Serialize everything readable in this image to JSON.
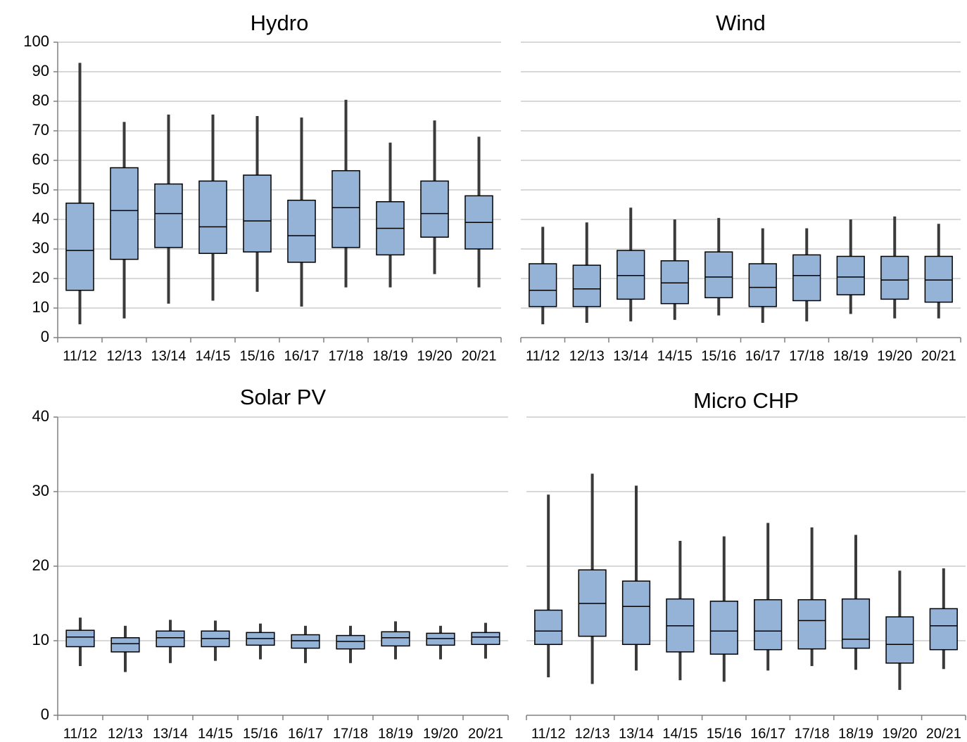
{
  "chart_data": [
    {
      "type": "box",
      "title": "Hydro",
      "color": "#95b3d7",
      "categories": [
        "11/12",
        "12/13",
        "13/14",
        "14/15",
        "15/16",
        "16/17",
        "17/18",
        "18/19",
        "19/20",
        "20/21"
      ],
      "max": [
        93,
        73,
        75.5,
        75.5,
        75,
        74.5,
        80.5,
        66,
        73.5,
        68
      ],
      "q3": [
        45.5,
        57.5,
        52,
        53,
        55,
        46.5,
        56.5,
        46,
        53,
        48
      ],
      "median": [
        29.5,
        43,
        42,
        37.5,
        39.5,
        34.5,
        44,
        37,
        42,
        39
      ],
      "q1": [
        16,
        26.5,
        30.5,
        28.5,
        29,
        25.5,
        30.5,
        28,
        34,
        30
      ],
      "min": [
        4.5,
        6.5,
        11.5,
        12.5,
        15.5,
        10.5,
        17,
        17,
        21.5,
        17
      ],
      "ylim": [
        0,
        100
      ],
      "yticks": [
        0,
        10,
        20,
        30,
        40,
        50,
        60,
        70,
        80,
        90,
        100
      ],
      "y_axis": true,
      "grid": true
    },
    {
      "type": "box",
      "title": "Wind",
      "color": "#95b3d7",
      "categories": [
        "11/12",
        "12/13",
        "13/14",
        "14/15",
        "15/16",
        "16/17",
        "17/18",
        "18/19",
        "19/20",
        "20/21"
      ],
      "max": [
        37.5,
        39,
        44,
        40,
        40.5,
        37,
        37,
        40,
        41,
        38.5
      ],
      "q3": [
        25,
        24.5,
        29.5,
        26,
        29,
        25,
        28,
        27.5,
        27.5,
        27.5
      ],
      "median": [
        16,
        16.5,
        21,
        18.5,
        20.5,
        17,
        21,
        20.5,
        19.5,
        19.5
      ],
      "q1": [
        10.5,
        10.5,
        13,
        11.5,
        13.5,
        10.5,
        12.5,
        14.5,
        13,
        12
      ],
      "min": [
        4.5,
        5,
        5.5,
        6,
        7.5,
        5,
        5.5,
        8,
        6.5,
        6.5
      ],
      "ylim": [
        0,
        100
      ],
      "yticks": [
        0,
        10,
        20,
        30,
        40,
        50,
        60,
        70,
        80,
        90,
        100
      ],
      "y_axis": false,
      "grid": true
    },
    {
      "type": "box",
      "title": "Solar PV",
      "color": "#95b3d7",
      "categories": [
        "11/12",
        "12/13",
        "13/14",
        "14/15",
        "15/16",
        "16/17",
        "17/18",
        "18/19",
        "19/20",
        "20/21"
      ],
      "max": [
        13.1,
        12,
        12.8,
        12.7,
        12.3,
        12,
        12,
        12.6,
        12,
        12.4
      ],
      "q3": [
        11.4,
        10.4,
        11.3,
        11.3,
        11.1,
        10.8,
        10.7,
        11.2,
        11,
        11.1
      ],
      "median": [
        10.5,
        9.6,
        10.4,
        10.3,
        10.3,
        10,
        9.9,
        10.4,
        10.3,
        10.5
      ],
      "q1": [
        9.2,
        8.5,
        9.2,
        9.2,
        9.4,
        9,
        8.9,
        9.3,
        9.4,
        9.5
      ],
      "min": [
        6.6,
        5.8,
        7,
        7.3,
        7.5,
        7,
        7,
        7.5,
        7.5,
        7.6
      ],
      "ylim": [
        0,
        40
      ],
      "yticks": [
        0,
        10,
        20,
        30,
        40
      ],
      "y_axis": true,
      "grid": true
    },
    {
      "type": "box",
      "title": "Micro CHP",
      "color": "#95b3d7",
      "categories": [
        "11/12",
        "12/13",
        "13/14",
        "14/15",
        "15/16",
        "16/17",
        "17/18",
        "18/19",
        "19/20",
        "20/21"
      ],
      "max": [
        29.6,
        32.4,
        30.8,
        23.4,
        24,
        25.8,
        25.2,
        24.2,
        19.4,
        19.7
      ],
      "q3": [
        14.1,
        19.5,
        18,
        15.6,
        15.3,
        15.5,
        15.5,
        15.6,
        13.2,
        14.3
      ],
      "median": [
        11.3,
        15,
        14.6,
        12,
        11.3,
        11.3,
        12.7,
        10.2,
        9.5,
        12
      ],
      "q1": [
        9.5,
        10.6,
        9.5,
        8.5,
        8.2,
        8.8,
        8.9,
        9,
        7,
        8.8
      ],
      "min": [
        5.1,
        4.2,
        6,
        4.7,
        4.5,
        6,
        6.6,
        6.1,
        3.4,
        6.2
      ],
      "ylim": [
        0,
        40
      ],
      "yticks": [
        0,
        10,
        20,
        30,
        40
      ],
      "y_axis": false,
      "grid": true
    }
  ]
}
